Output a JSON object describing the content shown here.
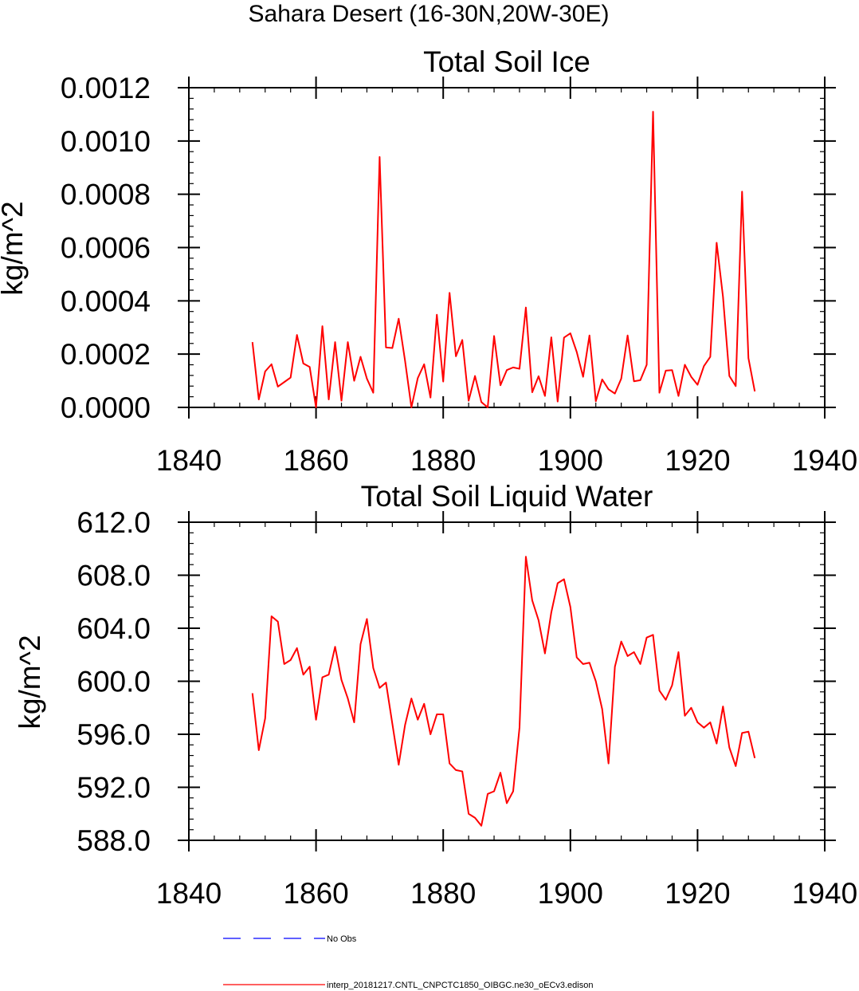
{
  "figure_title": "Sahara Desert (16-30N,20W-30E)",
  "legend": {
    "no_obs_label": "No Obs",
    "model_label": "interp_20181217.CNTL_CNPCTC1850_OIBGC.ne30_oECv3.edison",
    "no_obs_color": "#0000ff",
    "model_color": "#ff0000"
  },
  "chart_data": [
    {
      "type": "line",
      "title": "Total Soil Ice",
      "xlabel": "",
      "ylabel": "kg/m^2",
      "xlim": [
        1840,
        1940
      ],
      "ylim": [
        0,
        0.0012
      ],
      "x_ticks": [
        1840,
        1860,
        1880,
        1900,
        1920,
        1940
      ],
      "x_tick_labels": [
        "1840",
        "1860",
        "1880",
        "1900",
        "1920",
        "1940"
      ],
      "y_ticks": [
        0,
        0.0002,
        0.0004,
        0.0006,
        0.0008,
        0.001,
        0.0012
      ],
      "y_tick_labels": [
        "0.0000",
        "0.0002",
        "0.0004",
        "0.0006",
        "0.0008",
        "0.0010",
        "0.0012"
      ],
      "x_minor_step": 4,
      "y_minor_step": 4e-05,
      "series": [
        {
          "name": "interp_20181217.CNTL_CNPCTC1850_OIBGC.ne30_oECv3.edison",
          "color": "#ff0000",
          "x_start": 1850,
          "x_step": 1,
          "values": [
            0.000245,
            3e-05,
            0.000135,
            0.000162,
            7.8e-05,
            9.5e-05,
            0.000112,
            0.000272,
            0.000165,
            0.000152,
            0.0,
            0.000305,
            3e-05,
            0.000245,
            2.5e-05,
            0.000245,
            0.0001,
            0.00019,
            0.000108,
            5.5e-05,
            0.00094,
            0.000225,
            0.000223,
            0.000333,
            0.000175,
            0.0,
            0.00011,
            0.000162,
            3.7e-05,
            0.000348,
            9.7e-05,
            0.00043,
            0.000192,
            0.000253,
            2.5e-05,
            0.000118,
            2e-05,
            0.0,
            0.000268,
            8.3e-05,
            0.00014,
            0.00015,
            0.000145,
            0.000375,
            5.7e-05,
            0.000117,
            4.3e-05,
            0.000263,
            2.2e-05,
            0.000262,
            0.000278,
            0.000208,
            0.000115,
            0.00027,
            2.3e-05,
            0.000105,
            6.8e-05,
            5.2e-05,
            0.000108,
            0.00027,
            9.8e-05,
            0.000102,
            0.00016,
            0.00111,
            5.5e-05,
            0.000138,
            0.00014,
            4.3e-05,
            0.00016,
            0.000115,
            8.5e-05,
            0.000155,
            0.00019,
            0.000618,
            0.000415,
            0.000118,
            8e-05,
            0.00081,
            0.000185,
            6e-05
          ]
        }
      ]
    },
    {
      "type": "line",
      "title": "Total Soil Liquid Water",
      "xlabel": "",
      "ylabel": "kg/m^2",
      "xlim": [
        1840,
        1940
      ],
      "ylim": [
        588,
        612
      ],
      "x_ticks": [
        1840,
        1860,
        1880,
        1900,
        1920,
        1940
      ],
      "x_tick_labels": [
        "1840",
        "1860",
        "1880",
        "1900",
        "1920",
        "1940"
      ],
      "y_ticks": [
        588,
        592,
        596,
        600,
        604,
        608,
        612
      ],
      "y_tick_labels": [
        "588.0",
        "592.0",
        "596.0",
        "600.0",
        "604.0",
        "608.0",
        "612.0"
      ],
      "x_minor_step": 4,
      "y_minor_step": 0.8,
      "series": [
        {
          "name": "interp_20181217.CNTL_CNPCTC1850_OIBGC.ne30_oECv3.edison",
          "color": "#ff0000",
          "x_start": 1850,
          "x_step": 1,
          "values": [
            599.1,
            594.8,
            597.2,
            604.9,
            604.5,
            601.3,
            601.6,
            602.5,
            600.5,
            601.1,
            597.1,
            600.3,
            600.5,
            602.6,
            600.1,
            598.7,
            596.9,
            602.8,
            604.7,
            601.0,
            599.5,
            599.9,
            596.8,
            593.7,
            596.7,
            598.7,
            597.1,
            598.3,
            596.0,
            597.5,
            597.5,
            593.8,
            593.3,
            593.2,
            590.0,
            589.7,
            589.1,
            591.5,
            591.7,
            593.1,
            590.8,
            591.7,
            596.5,
            609.4,
            606.1,
            604.6,
            602.1,
            605.2,
            607.4,
            607.7,
            605.6,
            601.8,
            601.3,
            601.4,
            600.0,
            597.9,
            593.8,
            601.1,
            603.0,
            601.9,
            602.2,
            601.3,
            603.3,
            603.5,
            599.3,
            598.6,
            599.7,
            602.2,
            597.4,
            598.0,
            596.9,
            596.5,
            596.9,
            595.3,
            598.1,
            595.0,
            593.6,
            596.1,
            596.2,
            594.2
          ]
        }
      ]
    }
  ]
}
